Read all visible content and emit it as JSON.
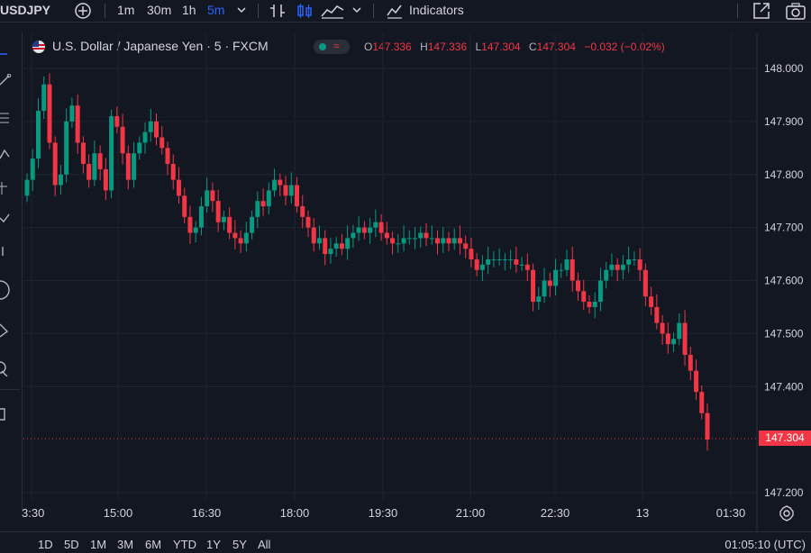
{
  "toolbar": {
    "symbol": "USDJPY",
    "intervals": [
      "1m",
      "30m",
      "1h",
      "5m"
    ],
    "active_interval": "5m",
    "indicators_label": "Indicators"
  },
  "legend": {
    "title": "U.S. Dollar / Japanese Yen · 5 · FXCM",
    "o_label": "O",
    "o": "147.336",
    "h_label": "H",
    "h": "147.336",
    "l_label": "L",
    "l": "147.304",
    "c_label": "C",
    "c": "147.304",
    "change": "−0.032 (−0.02%)"
  },
  "last_price": "147.304",
  "time_ranges": [
    "1D",
    "5D",
    "1M",
    "3M",
    "6M",
    "YTD",
    "1Y",
    "5Y",
    "All"
  ],
  "clock": "01:05:10 (UTC)",
  "colors": {
    "up": "#089981",
    "down": "#f23645",
    "accent": "#2962ff",
    "background": "#131722"
  },
  "chart_data": {
    "type": "candlestick",
    "y_ticks": [
      "148.000",
      "147.900",
      "147.800",
      "147.700",
      "147.600",
      "147.500",
      "147.400",
      "147.200"
    ],
    "x_ticks": [
      "3:30",
      "15:00",
      "16:30",
      "18:00",
      "19:30",
      "21:00",
      "22:30",
      "13",
      "01:30"
    ],
    "ylim": [
      147.2,
      148.0
    ],
    "closes": [
      147.79,
      147.83,
      147.92,
      147.97,
      147.86,
      147.78,
      147.8,
      147.9,
      147.93,
      147.86,
      147.82,
      147.79,
      147.84,
      147.81,
      147.77,
      147.91,
      147.89,
      147.84,
      147.79,
      147.84,
      147.86,
      147.88,
      147.9,
      147.87,
      147.85,
      147.82,
      147.79,
      147.76,
      147.72,
      147.69,
      147.7,
      147.74,
      147.77,
      147.75,
      147.71,
      147.72,
      147.69,
      147.68,
      147.67,
      147.69,
      147.72,
      147.75,
      147.74,
      147.77,
      147.79,
      147.78,
      147.76,
      147.78,
      147.74,
      147.72,
      147.7,
      147.67,
      147.68,
      147.65,
      147.66,
      147.67,
      147.66,
      147.68,
      147.69,
      147.7,
      147.69,
      147.7,
      147.71,
      147.69,
      147.68,
      147.67,
      147.67,
      147.68,
      147.68,
      147.68,
      147.69,
      147.68,
      147.68,
      147.67,
      147.68,
      147.67,
      147.68,
      147.67,
      147.66,
      147.64,
      147.62,
      147.63,
      147.64,
      147.64,
      147.64,
      147.64,
      147.64,
      147.63,
      147.63,
      147.62,
      147.56,
      147.57,
      147.6,
      147.59,
      147.62,
      147.62,
      147.64,
      147.6,
      147.58,
      147.56,
      147.55,
      147.56,
      147.6,
      147.62,
      147.63,
      147.62,
      147.63,
      147.64,
      147.64,
      147.62,
      147.57,
      147.55,
      147.52,
      147.5,
      147.48,
      147.49,
      147.52,
      147.46,
      147.43,
      147.39,
      147.35,
      147.3
    ]
  }
}
